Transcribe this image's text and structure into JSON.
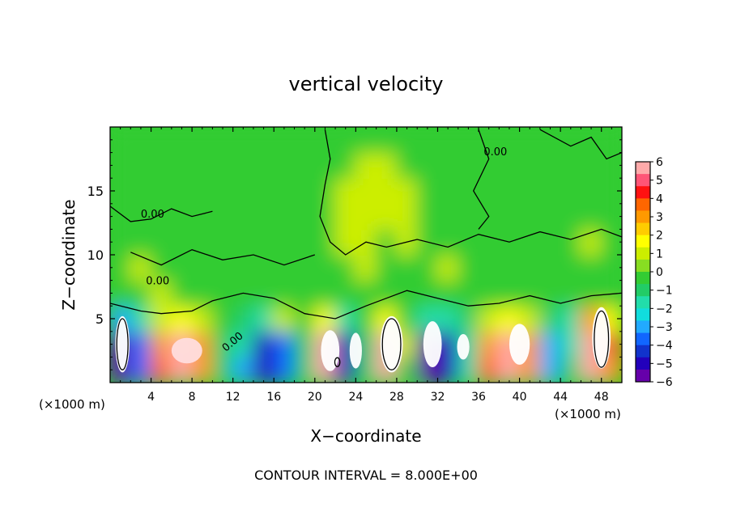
{
  "chart_data": {
    "type": "heatmap",
    "title": "vertical velocity",
    "xlabel": "X−coordinate",
    "ylabel": "Z−coordinate",
    "x_unit_label": "(×1000 m)",
    "x_unit_label_right": "(×1000 m)",
    "xlim": [
      0,
      50
    ],
    "ylim": [
      0,
      20
    ],
    "x_ticks": [
      4,
      8,
      12,
      16,
      20,
      24,
      28,
      32,
      36,
      40,
      44,
      48
    ],
    "y_ticks": [
      5,
      10,
      15
    ],
    "contour_interval_text": "CONTOUR INTERVAL = 8.000E+00",
    "contour_labels": [
      "0.00",
      "0.00",
      "0.00",
      "0.00"
    ],
    "colorbar": {
      "ticks": [
        "6",
        "5",
        "4",
        "3",
        "2",
        "1",
        "0",
        "−1",
        "−2",
        "−3",
        "−4",
        "−5",
        "−6"
      ],
      "range": [
        -6,
        6
      ],
      "colors": [
        "#ffaaaa",
        "#ff5577",
        "#ff1111",
        "#ff6600",
        "#ff9900",
        "#ffcc00",
        "#ffff00",
        "#ccee00",
        "#88dd22",
        "#33cc33",
        "#22cc66",
        "#22ddaa",
        "#11dddd",
        "#22aaff",
        "#1166ff",
        "#1133cc",
        "#2200bb",
        "#6600aa"
      ]
    },
    "cells_x": [
      1,
      3,
      5,
      7,
      9,
      11,
      13,
      15,
      17,
      19,
      21,
      23,
      25,
      27,
      29,
      31,
      33,
      35,
      37,
      39,
      41,
      43,
      45,
      47,
      49
    ],
    "cells_z": [
      1,
      3,
      5,
      7,
      9,
      11,
      13,
      15,
      17,
      19
    ],
    "w_grid": [
      [
        -6,
        -4,
        4,
        6,
        3,
        -1,
        -3,
        -5,
        -4,
        -1,
        6,
        -5,
        -1,
        6,
        0,
        -6,
        -5,
        -2,
        4,
        6,
        3,
        -3,
        -1,
        6,
        3
      ],
      [
        -6,
        -4,
        3,
        6,
        3,
        -1,
        -2,
        -5,
        -4,
        -1,
        6,
        -5,
        -1,
        6,
        1,
        -6,
        -5,
        -2,
        3,
        6,
        3,
        -3,
        -2,
        6,
        4
      ],
      [
        -3,
        -2,
        1,
        2,
        1,
        0,
        -1,
        -2,
        1,
        0,
        2,
        -2,
        0,
        2,
        0,
        -2,
        -2,
        -1,
        1,
        2,
        1,
        -1,
        -2,
        3,
        2
      ],
      [
        0,
        0,
        1,
        0,
        0,
        0,
        0,
        0,
        0,
        0,
        0,
        0,
        0,
        0,
        0,
        0,
        0,
        0,
        0,
        0,
        0,
        0,
        0,
        0,
        0
      ],
      [
        0,
        1,
        0,
        0,
        0,
        0,
        0,
        0,
        0,
        0,
        0,
        0,
        1,
        0,
        0,
        0,
        1,
        0,
        0,
        0,
        0,
        0,
        0,
        0,
        0
      ],
      [
        0,
        0,
        0,
        0,
        0,
        0,
        0,
        0,
        0,
        0,
        0,
        1,
        1,
        0,
        1,
        0,
        0,
        0,
        0,
        0,
        0,
        0,
        0,
        1,
        0
      ],
      [
        0,
        0,
        0,
        0,
        0,
        0,
        0,
        0,
        0,
        0,
        0,
        1,
        1,
        1,
        1,
        0,
        0,
        0,
        0,
        0,
        0,
        0,
        0,
        0,
        0
      ],
      [
        0,
        0,
        0,
        0,
        0,
        0,
        0,
        0,
        0,
        0,
        0,
        1,
        1,
        1,
        1,
        0,
        0,
        0,
        0,
        0,
        0,
        0,
        0,
        0,
        0
      ],
      [
        0,
        0,
        0,
        0,
        0,
        0,
        0,
        0,
        0,
        0,
        0,
        0,
        1,
        1,
        0,
        0,
        0,
        0,
        0,
        0,
        0,
        0,
        0,
        0,
        0
      ],
      [
        0,
        0,
        0,
        0,
        0,
        0,
        0,
        0,
        0,
        0,
        0,
        0,
        0,
        0,
        0,
        0,
        0,
        0,
        0,
        0,
        0,
        0,
        0,
        0,
        0
      ]
    ]
  }
}
